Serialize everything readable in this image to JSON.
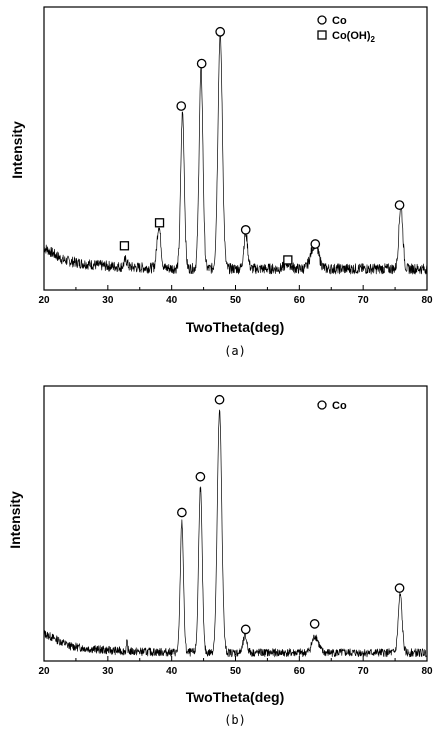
{
  "chart_data": [
    {
      "type": "line",
      "panel_label": "(a)",
      "xlabel": "TwoTheta(deg)",
      "ylabel": "Intensity",
      "xlim": [
        20,
        80
      ],
      "x_ticks": [
        "20",
        "30",
        "40",
        "50",
        "60",
        "70",
        "80"
      ],
      "y_ticks_shown": false,
      "grid": false,
      "legend": {
        "placement": "top-right",
        "entries": [
          {
            "marker": "circle",
            "label": "Co"
          },
          {
            "marker": "square",
            "label": "Co(OH)",
            "subscript": "2"
          }
        ]
      },
      "baseline": 12,
      "noise_amplitude": 3,
      "background_rise": [
        {
          "x": 20,
          "y": 12
        },
        {
          "x": 23,
          "y": 5
        }
      ],
      "series": [
        {
          "peaks": [
            {
              "x": 32.8,
              "height": 4,
              "width": 0.25
            },
            {
              "x": 38.0,
              "height": 24,
              "width": 0.3
            },
            {
              "x": 41.7,
              "height": 88,
              "width": 0.28
            },
            {
              "x": 44.6,
              "height": 112,
              "width": 0.3
            },
            {
              "x": 47.6,
              "height": 132,
              "width": 0.35
            },
            {
              "x": 51.6,
              "height": 20,
              "width": 0.3
            },
            {
              "x": 58.2,
              "height": 3,
              "width": 0.5
            },
            {
              "x": 62.4,
              "height": 14,
              "width": 0.6
            },
            {
              "x": 75.9,
              "height": 36,
              "width": 0.3
            }
          ]
        }
      ],
      "annotations": [
        {
          "marker": "square",
          "x": 32.6,
          "y": 25
        },
        {
          "marker": "square",
          "x": 38.1,
          "y": 38
        },
        {
          "marker": "circle",
          "x": 41.5,
          "y": 104
        },
        {
          "marker": "circle",
          "x": 44.7,
          "y": 128
        },
        {
          "marker": "circle",
          "x": 47.6,
          "y": 146
        },
        {
          "marker": "circle",
          "x": 51.6,
          "y": 34
        },
        {
          "marker": "square",
          "x": 58.2,
          "y": 17
        },
        {
          "marker": "circle",
          "x": 62.5,
          "y": 26
        },
        {
          "marker": "circle",
          "x": 75.7,
          "y": 48
        }
      ]
    },
    {
      "type": "line",
      "panel_label": "(b)",
      "xlabel": "TwoTheta(deg)",
      "ylabel": "Intensity",
      "xlim": [
        20,
        80
      ],
      "x_ticks": [
        "20",
        "30",
        "40",
        "50",
        "60",
        "70",
        "80"
      ],
      "y_ticks_shown": false,
      "grid": false,
      "legend": {
        "placement": "top-right",
        "entries": [
          {
            "marker": "circle",
            "label": "Co"
          }
        ]
      },
      "baseline": 6,
      "noise_amplitude": 3,
      "background_rise": [
        {
          "x": 20,
          "y": 14
        },
        {
          "x": 24,
          "y": 5
        }
      ],
      "series": [
        {
          "peaks": [
            {
              "x": 33.0,
              "height": 6,
              "width": 0.1
            },
            {
              "x": 41.6,
              "height": 95,
              "width": 0.25
            },
            {
              "x": 44.5,
              "height": 120,
              "width": 0.28
            },
            {
              "x": 47.5,
              "height": 175,
              "width": 0.35
            },
            {
              "x": 51.5,
              "height": 12,
              "width": 0.3
            },
            {
              "x": 62.5,
              "height": 12,
              "width": 0.5
            },
            {
              "x": 75.8,
              "height": 42,
              "width": 0.3
            }
          ]
        }
      ],
      "annotations": [
        {
          "marker": "circle",
          "x": 41.6,
          "y": 108
        },
        {
          "marker": "circle",
          "x": 44.5,
          "y": 134
        },
        {
          "marker": "circle",
          "x": 47.5,
          "y": 190
        },
        {
          "marker": "circle",
          "x": 51.6,
          "y": 23
        },
        {
          "marker": "circle",
          "x": 62.4,
          "y": 27
        },
        {
          "marker": "circle",
          "x": 75.7,
          "y": 53
        }
      ]
    }
  ]
}
